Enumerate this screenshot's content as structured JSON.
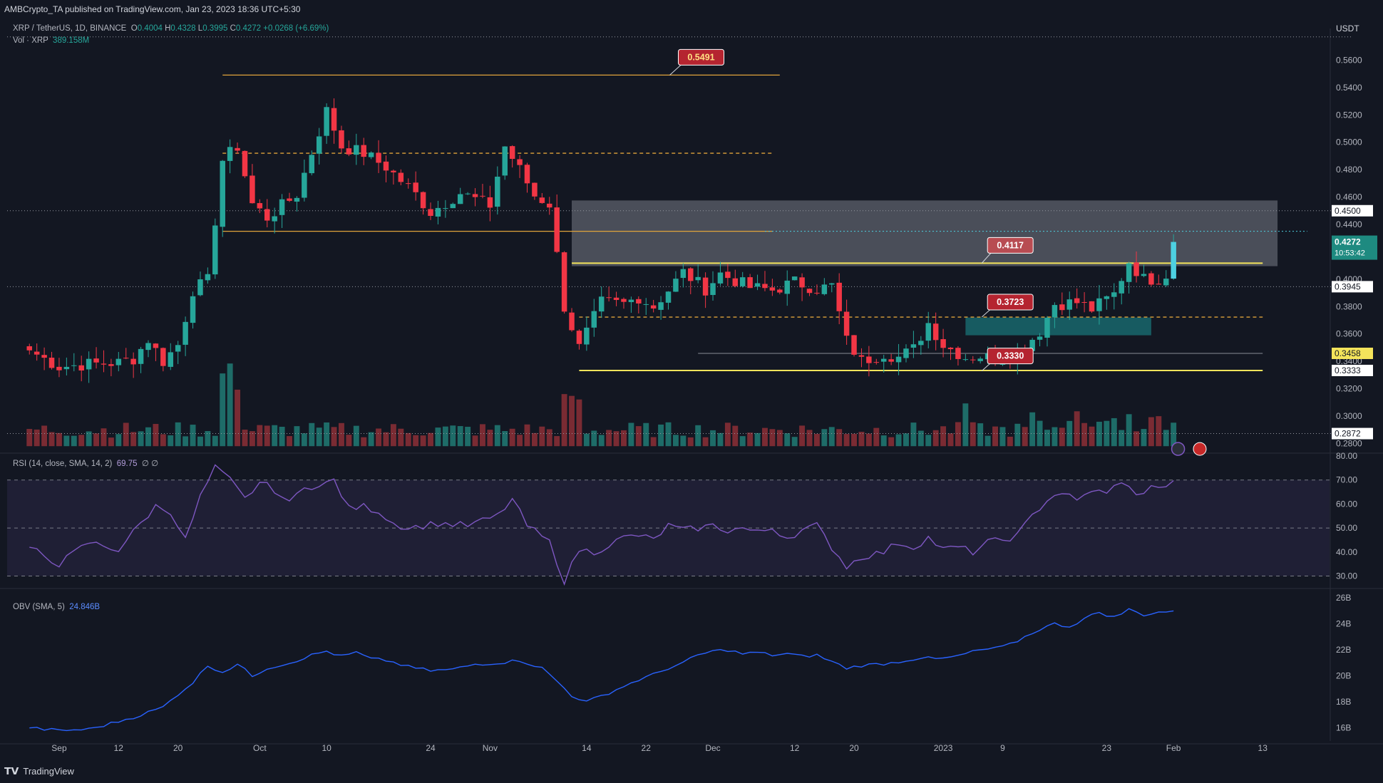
{
  "header": {
    "publisher_line": "AMBCrypto_TA published on TradingView.com, Jan 23, 2023 18:36 UTC+5:30",
    "symbol": "XRP / TetherUS, 1D, BINANCE",
    "ohlc": {
      "o_label": "O",
      "o": "0.4004",
      "h_label": "H",
      "h": "0.4328",
      "l_label": "L",
      "l": "0.3995",
      "c_label": "C",
      "c": "0.4272",
      "change": "+0.0268 (+6.69%)"
    },
    "vol_label": "Vol · XRP",
    "vol_value": "389.158M",
    "currency": "USDT"
  },
  "rsi_legend": {
    "label": "RSI (14, close, SMA, 14, 2)",
    "value": "69.75",
    "extra": "∅ ∅"
  },
  "obv_legend": {
    "label": "OBV (SMA, 5)",
    "value": "24.846B"
  },
  "footer": {
    "brand": "TradingView"
  },
  "colors": {
    "bg": "#131722",
    "up": "#26a69a",
    "down": "#f23645",
    "vol_up": "#1e6c68",
    "vol_down": "#7a2b33",
    "level": "#f4e45b",
    "orange": "#e0a33b",
    "rsi": "#7e57c2",
    "obv": "#2962ff",
    "zone": "#9598a1",
    "teal_zone": "#1a7f84"
  },
  "chart_data": [
    {
      "type": "candlestick",
      "title": "XRP / TetherUS, 1D, BINANCE",
      "ylim": [
        0.275,
        0.58
      ],
      "y_ticks": [
        "0.2800",
        "0.3000",
        "0.3200",
        "0.3400",
        "0.3600",
        "0.3800",
        "0.4000",
        "0.4200",
        "0.4400",
        "0.4600",
        "0.4800",
        "0.5000",
        "0.5200",
        "0.5400",
        "0.5600"
      ],
      "x_tick_labels": [
        {
          "label": "Sep",
          "day": 4
        },
        {
          "label": "12",
          "day": 12
        },
        {
          "label": "20",
          "day": 20
        },
        {
          "label": "Oct",
          "day": 31
        },
        {
          "label": "10",
          "day": 40
        },
        {
          "label": "24",
          "day": 54
        },
        {
          "label": "Nov",
          "day": 62
        },
        {
          "label": "14",
          "day": 75
        },
        {
          "label": "22",
          "day": 83
        },
        {
          "label": "Dec",
          "day": 92
        },
        {
          "label": "12",
          "day": 103
        },
        {
          "label": "20",
          "day": 111
        },
        {
          "label": "2023",
          "day": 123
        },
        {
          "label": "9",
          "day": 131
        },
        {
          "label": "23",
          "day": 145
        },
        {
          "label": "Feb",
          "day": 154
        },
        {
          "label": "13",
          "day": 166
        }
      ],
      "x_range_days": [
        -3,
        175
      ],
      "price_labels": [
        {
          "text": "0.4500",
          "value": 0.45,
          "style": "white"
        },
        {
          "text": "0.4272",
          "value": 0.4272,
          "style": "current",
          "countdown": "10:53:42"
        },
        {
          "text": "0.3945",
          "value": 0.3945,
          "style": "white"
        },
        {
          "text": "0.3458",
          "value": 0.3458,
          "style": "yellow"
        },
        {
          "text": "0.3333",
          "value": 0.3333,
          "style": "white"
        },
        {
          "text": "0.2872",
          "value": 0.2872,
          "style": "white"
        }
      ],
      "annotations": [
        {
          "text": "0.5491",
          "value": 0.5491,
          "day": 86
        },
        {
          "text": "0.4117",
          "value": 0.4117,
          "day": 128
        },
        {
          "text": "0.3723",
          "value": 0.3723,
          "day": 128
        },
        {
          "text": "0.3330",
          "value": 0.333,
          "day": 128
        }
      ],
      "zones": [
        {
          "name": "supply-zone",
          "from_day": 73,
          "to_day": 168,
          "low": 0.4095,
          "high": 0.4575,
          "color": "grey"
        },
        {
          "name": "demand-zone",
          "from_day": 126,
          "to_day": 151,
          "low": 0.359,
          "high": 0.372,
          "color": "teal"
        }
      ],
      "levels": [
        {
          "value": 0.5491,
          "from_day": 26,
          "to_day": 101,
          "style": "solid-orange"
        },
        {
          "value": 0.492,
          "from_day": 26,
          "to_day": 100,
          "style": "dashed-orange"
        },
        {
          "value": 0.435,
          "from_day": 26,
          "to_day": 100,
          "style": "solid-orange"
        },
        {
          "value": 0.4117,
          "from_day": 73,
          "to_day": 166,
          "style": "solid-yellow"
        },
        {
          "value": 0.3723,
          "from_day": 74,
          "to_day": 166,
          "style": "dashed-orange"
        },
        {
          "value": 0.3458,
          "from_day": 90,
          "to_day": 166,
          "style": "thin-white"
        },
        {
          "value": 0.3333,
          "from_day": 74,
          "to_day": 166,
          "style": "solid-yellow"
        },
        {
          "value": 0.435,
          "from_day": 99,
          "to_day": 172,
          "style": "dotted-cyan"
        },
        {
          "value": 0.45,
          "from_day": -3,
          "to_day": 178,
          "style": "dotted-white"
        },
        {
          "value": 0.3945,
          "from_day": -3,
          "to_day": 178,
          "style": "dotted-white"
        },
        {
          "value": 0.2872,
          "from_day": -3,
          "to_day": 178,
          "style": "dotted-white"
        },
        {
          "value": 0.577,
          "from_day": -3,
          "to_day": 178,
          "style": "dotted-white"
        }
      ],
      "day0_date": "2022-08-27",
      "anchors_close": [
        [
          0,
          0.348
        ],
        [
          4,
          0.336
        ],
        [
          8,
          0.338
        ],
        [
          12,
          0.339
        ],
        [
          14,
          0.342
        ],
        [
          16,
          0.356
        ],
        [
          18,
          0.34
        ],
        [
          20,
          0.352
        ],
        [
          22,
          0.392
        ],
        [
          24,
          0.399
        ],
        [
          26,
          0.487
        ],
        [
          28,
          0.497
        ],
        [
          30,
          0.455
        ],
        [
          32,
          0.445
        ],
        [
          36,
          0.462
        ],
        [
          40,
          0.523
        ],
        [
          42,
          0.497
        ],
        [
          45,
          0.492
        ],
        [
          48,
          0.482
        ],
        [
          52,
          0.462
        ],
        [
          54,
          0.449
        ],
        [
          58,
          0.463
        ],
        [
          62,
          0.454
        ],
        [
          64,
          0.497
        ],
        [
          66,
          0.48
        ],
        [
          68,
          0.461
        ],
        [
          70,
          0.455
        ],
        [
          72,
          0.38
        ],
        [
          74,
          0.35
        ],
        [
          77,
          0.383
        ],
        [
          80,
          0.382
        ],
        [
          82,
          0.387
        ],
        [
          84,
          0.38
        ],
        [
          86,
          0.392
        ],
        [
          88,
          0.405
        ],
        [
          91,
          0.393
        ],
        [
          93,
          0.404
        ],
        [
          97,
          0.394
        ],
        [
          100,
          0.392
        ],
        [
          103,
          0.398
        ],
        [
          106,
          0.393
        ],
        [
          108,
          0.395
        ],
        [
          110,
          0.355
        ],
        [
          112,
          0.34
        ],
        [
          115,
          0.346
        ],
        [
          117,
          0.343
        ],
        [
          119,
          0.349
        ],
        [
          121,
          0.368
        ],
        [
          123,
          0.352
        ],
        [
          126,
          0.343
        ],
        [
          128,
          0.344
        ],
        [
          130,
          0.342
        ],
        [
          133,
          0.346
        ],
        [
          136,
          0.362
        ],
        [
          138,
          0.382
        ],
        [
          141,
          0.383
        ],
        [
          143,
          0.378
        ],
        [
          146,
          0.389
        ],
        [
          148,
          0.413
        ],
        [
          150,
          0.4
        ],
        [
          152,
          0.4004
        ],
        [
          154,
          0.4272
        ]
      ]
    },
    {
      "type": "bar",
      "title": "Vol · XRP",
      "last_value": "389.158M",
      "note": "volume bars in the lower band of the price pane"
    },
    {
      "type": "line",
      "title": "RSI (14, close, SMA, 14, 2)",
      "last_value": 69.75,
      "ylim": [
        26,
        80
      ],
      "y_ticks": [
        "80.00",
        "70.00",
        "60.00",
        "50.00",
        "40.00",
        "30.00"
      ],
      "bands": [
        70,
        50,
        30
      ],
      "anchors": [
        [
          0,
          42
        ],
        [
          4,
          35
        ],
        [
          8,
          44
        ],
        [
          12,
          41
        ],
        [
          15,
          52
        ],
        [
          17,
          59
        ],
        [
          19,
          57
        ],
        [
          21,
          45
        ],
        [
          23,
          63
        ],
        [
          25,
          75
        ],
        [
          27,
          70
        ],
        [
          29,
          62
        ],
        [
          31,
          69
        ],
        [
          33,
          66
        ],
        [
          35,
          60
        ],
        [
          37,
          68
        ],
        [
          39,
          67
        ],
        [
          41,
          70
        ],
        [
          43,
          58
        ],
        [
          45,
          59
        ],
        [
          47,
          57
        ],
        [
          49,
          52
        ],
        [
          51,
          50
        ],
        [
          55,
          52
        ],
        [
          59,
          51
        ],
        [
          63,
          55
        ],
        [
          65,
          62
        ],
        [
          67,
          51
        ],
        [
          70,
          44
        ],
        [
          72,
          28
        ],
        [
          74,
          41
        ],
        [
          76,
          40
        ],
        [
          78,
          43
        ],
        [
          80,
          46
        ],
        [
          82,
          47
        ],
        [
          84,
          45
        ],
        [
          86,
          51
        ],
        [
          88,
          49
        ],
        [
          90,
          50
        ],
        [
          92,
          51
        ],
        [
          94,
          49
        ],
        [
          96,
          50
        ],
        [
          98,
          48
        ],
        [
          100,
          50
        ],
        [
          102,
          46
        ],
        [
          104,
          49
        ],
        [
          106,
          51
        ],
        [
          108,
          42
        ],
        [
          110,
          34
        ],
        [
          112,
          38
        ],
        [
          115,
          40
        ],
        [
          117,
          44
        ],
        [
          119,
          42
        ],
        [
          121,
          46
        ],
        [
          123,
          41
        ],
        [
          125,
          42
        ],
        [
          127,
          40
        ],
        [
          129,
          44
        ],
        [
          131,
          45
        ],
        [
          133,
          47
        ],
        [
          135,
          55
        ],
        [
          137,
          62
        ],
        [
          139,
          65
        ],
        [
          141,
          61
        ],
        [
          143,
          66
        ],
        [
          145,
          64
        ],
        [
          147,
          70
        ],
        [
          149,
          63
        ],
        [
          151,
          68
        ],
        [
          152,
          66
        ],
        [
          154,
          69.75
        ]
      ]
    },
    {
      "type": "line",
      "title": "OBV (SMA, 5)",
      "last_value": "24.846B",
      "ylim": [
        15.0,
        26.5
      ],
      "y_ticks": [
        "26B",
        "24B",
        "22B",
        "20B",
        "18B",
        "16B"
      ],
      "anchors": [
        [
          0,
          16.0
        ],
        [
          4,
          15.8
        ],
        [
          8,
          15.9
        ],
        [
          12,
          16.5
        ],
        [
          15,
          17.0
        ],
        [
          18,
          17.6
        ],
        [
          20,
          18.6
        ],
        [
          22,
          19.5
        ],
        [
          24,
          20.8
        ],
        [
          26,
          20.3
        ],
        [
          28,
          20.9
        ],
        [
          30,
          20.0
        ],
        [
          32,
          20.6
        ],
        [
          35,
          21.0
        ],
        [
          38,
          21.6
        ],
        [
          40,
          21.9
        ],
        [
          42,
          21.5
        ],
        [
          44,
          21.8
        ],
        [
          46,
          21.3
        ],
        [
          48,
          21.2
        ],
        [
          51,
          20.7
        ],
        [
          54,
          20.4
        ],
        [
          57,
          20.5
        ],
        [
          60,
          20.9
        ],
        [
          63,
          21.0
        ],
        [
          66,
          21.2
        ],
        [
          69,
          20.6
        ],
        [
          71,
          19.6
        ],
        [
          73,
          18.5
        ],
        [
          75,
          18.0
        ],
        [
          78,
          18.7
        ],
        [
          80,
          19.2
        ],
        [
          82,
          19.7
        ],
        [
          84,
          20.1
        ],
        [
          86,
          20.6
        ],
        [
          88,
          21.0
        ],
        [
          90,
          21.6
        ],
        [
          92,
          21.9
        ],
        [
          94,
          22.0
        ],
        [
          96,
          21.7
        ],
        [
          98,
          21.8
        ],
        [
          100,
          21.6
        ],
        [
          102,
          21.7
        ],
        [
          104,
          21.5
        ],
        [
          106,
          21.6
        ],
        [
          108,
          21.1
        ],
        [
          110,
          20.6
        ],
        [
          112,
          20.8
        ],
        [
          114,
          20.9
        ],
        [
          116,
          21.0
        ],
        [
          118,
          21.2
        ],
        [
          120,
          21.4
        ],
        [
          122,
          21.3
        ],
        [
          124,
          21.4
        ],
        [
          126,
          21.7
        ],
        [
          128,
          22.0
        ],
        [
          130,
          22.1
        ],
        [
          132,
          22.4
        ],
        [
          134,
          23.0
        ],
        [
          136,
          23.6
        ],
        [
          138,
          24.0
        ],
        [
          140,
          23.8
        ],
        [
          142,
          24.4
        ],
        [
          144,
          24.9
        ],
        [
          146,
          24.5
        ],
        [
          148,
          25.1
        ],
        [
          150,
          24.7
        ],
        [
          152,
          24.9
        ],
        [
          154,
          25.0
        ]
      ]
    }
  ]
}
